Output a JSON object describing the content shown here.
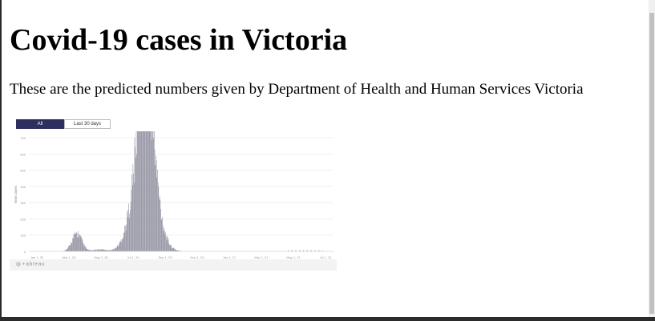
{
  "page": {
    "heading": "Covid-19 cases in Victoria",
    "intro": "These are the predicted numbers given by Department of Health and Human Services Victoria"
  },
  "embed": {
    "tabs": [
      {
        "label": "All",
        "active": true
      },
      {
        "label": "Last 30 days",
        "active": false
      }
    ],
    "logo_text": "+ableau",
    "colors": {
      "bars": "#8e8e9e",
      "tab_active": "#2e2e5f",
      "grid": "#e6e6e6"
    }
  },
  "chart_data": {
    "type": "bar",
    "title": "",
    "ylabel": "New cases",
    "ylim": [
      0,
      700
    ],
    "yticks": [
      "700",
      "600",
      "500",
      "400",
      "300",
      "200",
      "100",
      "0"
    ],
    "xticks": [
      "Jan 1, 20",
      "Mar 1, 20",
      "May 1, 20",
      "Jul 1, 20",
      "Sep 1, 20",
      "Nov 1, 20",
      "Jan 1, 21",
      "Mar 1, 21",
      "May 1, 21",
      "Jul 1, 21"
    ],
    "x_range_days": [
      0,
      560
    ],
    "peaks": [
      {
        "center_day": 88,
        "height": 110,
        "width": 9
      },
      {
        "center_day": 130,
        "height": 12,
        "width": 12
      },
      {
        "center_day": 212,
        "height": 680,
        "width": 20
      },
      {
        "center_day": 215,
        "height": 520,
        "width": 12
      }
    ]
  }
}
